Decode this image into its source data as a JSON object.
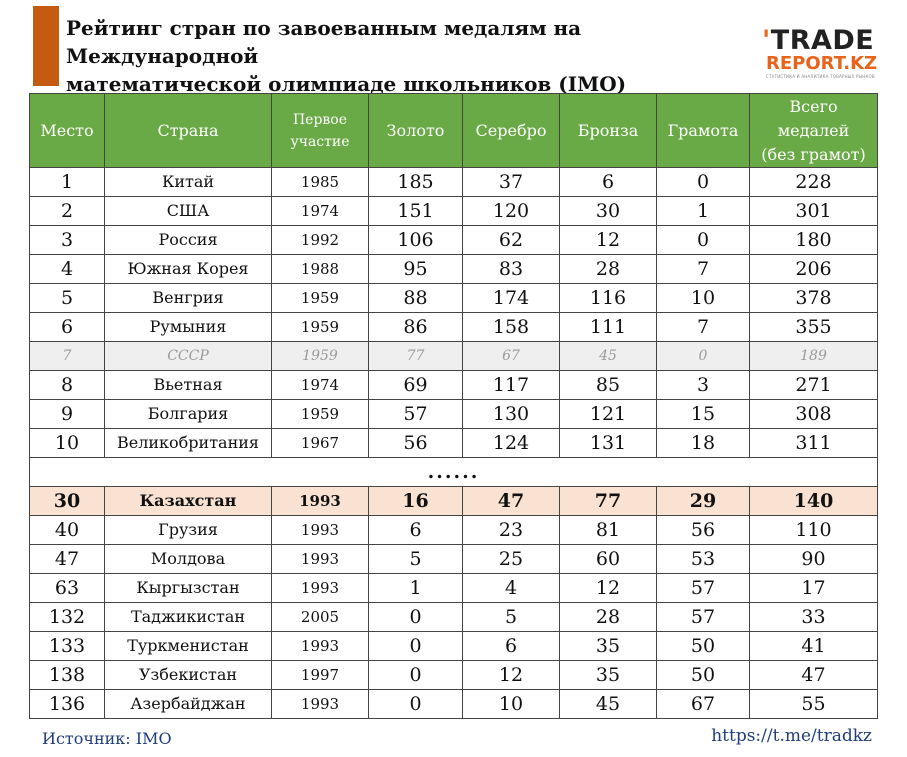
{
  "colors": {
    "accent_bar": "#c55a11",
    "header_bg": "#6aaa46",
    "highlight_row": "#fae2d3",
    "muted_row": "#efefef",
    "logo_dark": "#222222",
    "logo_orange": "#e8641b"
  },
  "title": {
    "line1": "Рейтинг стран по завоеванным медалям на Международной",
    "line2": "математической олимпиаде школьников (IMO)"
  },
  "logo": {
    "line1_mark": "'",
    "line1": "TRADE",
    "line2": "REPORT.KZ",
    "tagline": "СТАТИСТИКА И АНАЛИТИКА ТОВАРНЫХ РЫНКОВ"
  },
  "table": {
    "headers": {
      "place": "Место",
      "country": "Страна",
      "first_1": "Первое",
      "first_2": "участие",
      "gold": "Золото",
      "silver": "Серебро",
      "bronze": "Бронза",
      "hm": "Грамота",
      "total_1": "Всего",
      "total_2": "медалей",
      "total_3": "(без грамот)"
    },
    "rows": [
      {
        "place": "1",
        "country": "Китай",
        "first": "1985",
        "gold": "185",
        "silver": "37",
        "bronze": "6",
        "hm": "0",
        "total": "228"
      },
      {
        "place": "2",
        "country": "США",
        "first": "1974",
        "gold": "151",
        "silver": "120",
        "bronze": "30",
        "hm": "1",
        "total": "301"
      },
      {
        "place": "3",
        "country": "Россия",
        "first": "1992",
        "gold": "106",
        "silver": "62",
        "bronze": "12",
        "hm": "0",
        "total": "180"
      },
      {
        "place": "4",
        "country": "Южная Корея",
        "first": "1988",
        "gold": "95",
        "silver": "83",
        "bronze": "28",
        "hm": "7",
        "total": "206"
      },
      {
        "place": "5",
        "country": "Венгрия",
        "first": "1959",
        "gold": "88",
        "silver": "174",
        "bronze": "116",
        "hm": "10",
        "total": "378"
      },
      {
        "place": "6",
        "country": "Румыния",
        "first": "1959",
        "gold": "86",
        "silver": "158",
        "bronze": "111",
        "hm": "7",
        "total": "355"
      },
      {
        "place": "7",
        "country": "СССР",
        "first": "1959",
        "gold": "77",
        "silver": "67",
        "bronze": "45",
        "hm": "0",
        "total": "189"
      },
      {
        "place": "8",
        "country": "Вьетная",
        "first": "1974",
        "gold": "69",
        "silver": "117",
        "bronze": "85",
        "hm": "3",
        "total": "271"
      },
      {
        "place": "9",
        "country": "Болгария",
        "first": "1959",
        "gold": "57",
        "silver": "130",
        "bronze": "121",
        "hm": "15",
        "total": "308"
      },
      {
        "place": "10",
        "country": "Великобритания",
        "first": "1967",
        "gold": "56",
        "silver": "124",
        "bronze": "131",
        "hm": "18",
        "total": "311"
      }
    ],
    "gap": "......",
    "rows2": [
      {
        "place": "30",
        "country": "Казахстан",
        "first": "1993",
        "gold": "16",
        "silver": "47",
        "bronze": "77",
        "hm": "29",
        "total": "140"
      },
      {
        "place": "40",
        "country": "Грузия",
        "first": "1993",
        "gold": "6",
        "silver": "23",
        "bronze": "81",
        "hm": "56",
        "total": "110"
      },
      {
        "place": "47",
        "country": "Молдова",
        "first": "1993",
        "gold": "5",
        "silver": "25",
        "bronze": "60",
        "hm": "53",
        "total": "90"
      },
      {
        "place": "63",
        "country": "Кыргызстан",
        "first": "1993",
        "gold": "1",
        "silver": "4",
        "bronze": "12",
        "hm": "57",
        "total": "17"
      },
      {
        "place": "132",
        "country": "Таджикистан",
        "first": "2005",
        "gold": "0",
        "silver": "5",
        "bronze": "28",
        "hm": "57",
        "total": "33"
      },
      {
        "place": "133",
        "country": "Туркменистан",
        "first": "1993",
        "gold": "0",
        "silver": "6",
        "bronze": "35",
        "hm": "50",
        "total": "41"
      },
      {
        "place": "138",
        "country": "Узбекистан",
        "first": "1997",
        "gold": "0",
        "silver": "12",
        "bronze": "35",
        "hm": "50",
        "total": "47"
      },
      {
        "place": "136",
        "country": "Азербайджан",
        "first": "1993",
        "gold": "0",
        "silver": "10",
        "bronze": "45",
        "hm": "67",
        "total": "55"
      }
    ]
  },
  "footer": {
    "source": "Источник: IMO",
    "link": "https://t.me/tradkz"
  }
}
